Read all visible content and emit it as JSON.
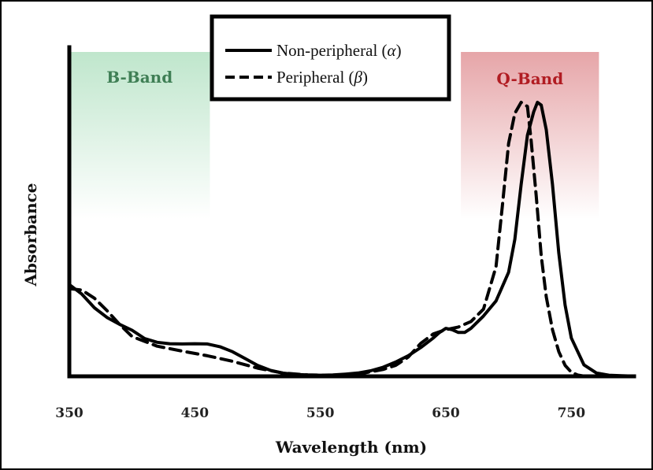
{
  "chart_data": {
    "type": "line",
    "xlabel": "Wavelength (nm)",
    "ylabel": "Absorbance",
    "xlim": [
      350,
      800
    ],
    "ylim": [
      0,
      1.0
    ],
    "xticks": [
      "350",
      "450",
      "550",
      "650",
      "750"
    ],
    "grid": false,
    "legend_position": "top-center",
    "annotations": [
      {
        "label": "B-Band",
        "range": [
          350,
          462
        ],
        "color": "#3f7f55",
        "fill": "#bfe6cc"
      },
      {
        "label": "Q-Band",
        "range": [
          662,
          772
        ],
        "color": "#b11c22",
        "fill": "#e6a5a8"
      }
    ],
    "series": [
      {
        "name": "Non-peripheral (",
        "symbol": "α",
        "name_suffix": ")",
        "style": "solid",
        "x": [
          350,
          360,
          370,
          380,
          390,
          400,
          410,
          420,
          430,
          440,
          450,
          460,
          470,
          480,
          490,
          500,
          510,
          520,
          530,
          540,
          550,
          560,
          570,
          580,
          590,
          600,
          610,
          620,
          630,
          640,
          645,
          650,
          655,
          660,
          665,
          670,
          680,
          690,
          700,
          705,
          710,
          715,
          720,
          723,
          726,
          730,
          735,
          740,
          745,
          750,
          760,
          770,
          780,
          790,
          800
        ],
        "y": [
          0.335,
          0.3,
          0.25,
          0.215,
          0.19,
          0.168,
          0.138,
          0.124,
          0.119,
          0.118,
          0.119,
          0.118,
          0.108,
          0.09,
          0.065,
          0.04,
          0.022,
          0.012,
          0.007,
          0.005,
          0.004,
          0.005,
          0.008,
          0.012,
          0.02,
          0.033,
          0.052,
          0.075,
          0.105,
          0.14,
          0.16,
          0.175,
          0.17,
          0.16,
          0.16,
          0.175,
          0.22,
          0.275,
          0.38,
          0.5,
          0.7,
          0.88,
          0.965,
          1.0,
          0.99,
          0.9,
          0.7,
          0.45,
          0.26,
          0.14,
          0.042,
          0.012,
          0.004,
          0.002,
          0.001
        ]
      },
      {
        "name": "Peripheral (",
        "symbol": "β",
        "name_suffix": ")",
        "style": "dashed",
        "x": [
          350,
          360,
          370,
          380,
          390,
          400,
          420,
          440,
          460,
          480,
          500,
          520,
          540,
          560,
          580,
          600,
          610,
          620,
          630,
          640,
          650,
          660,
          670,
          680,
          690,
          695,
          700,
          705,
          710,
          715,
          718,
          722,
          726,
          730,
          735,
          740,
          745,
          750,
          755,
          760,
          770
        ],
        "y": [
          0.32,
          0.315,
          0.285,
          0.24,
          0.19,
          0.145,
          0.11,
          0.092,
          0.075,
          0.055,
          0.03,
          0.012,
          0.005,
          0.004,
          0.008,
          0.025,
          0.04,
          0.07,
          0.12,
          0.155,
          0.17,
          0.18,
          0.2,
          0.245,
          0.4,
          0.62,
          0.85,
          0.96,
          1.0,
          0.985,
          0.86,
          0.66,
          0.44,
          0.29,
          0.17,
          0.09,
          0.04,
          0.015,
          0.005,
          0.001,
          0.0
        ]
      }
    ]
  }
}
